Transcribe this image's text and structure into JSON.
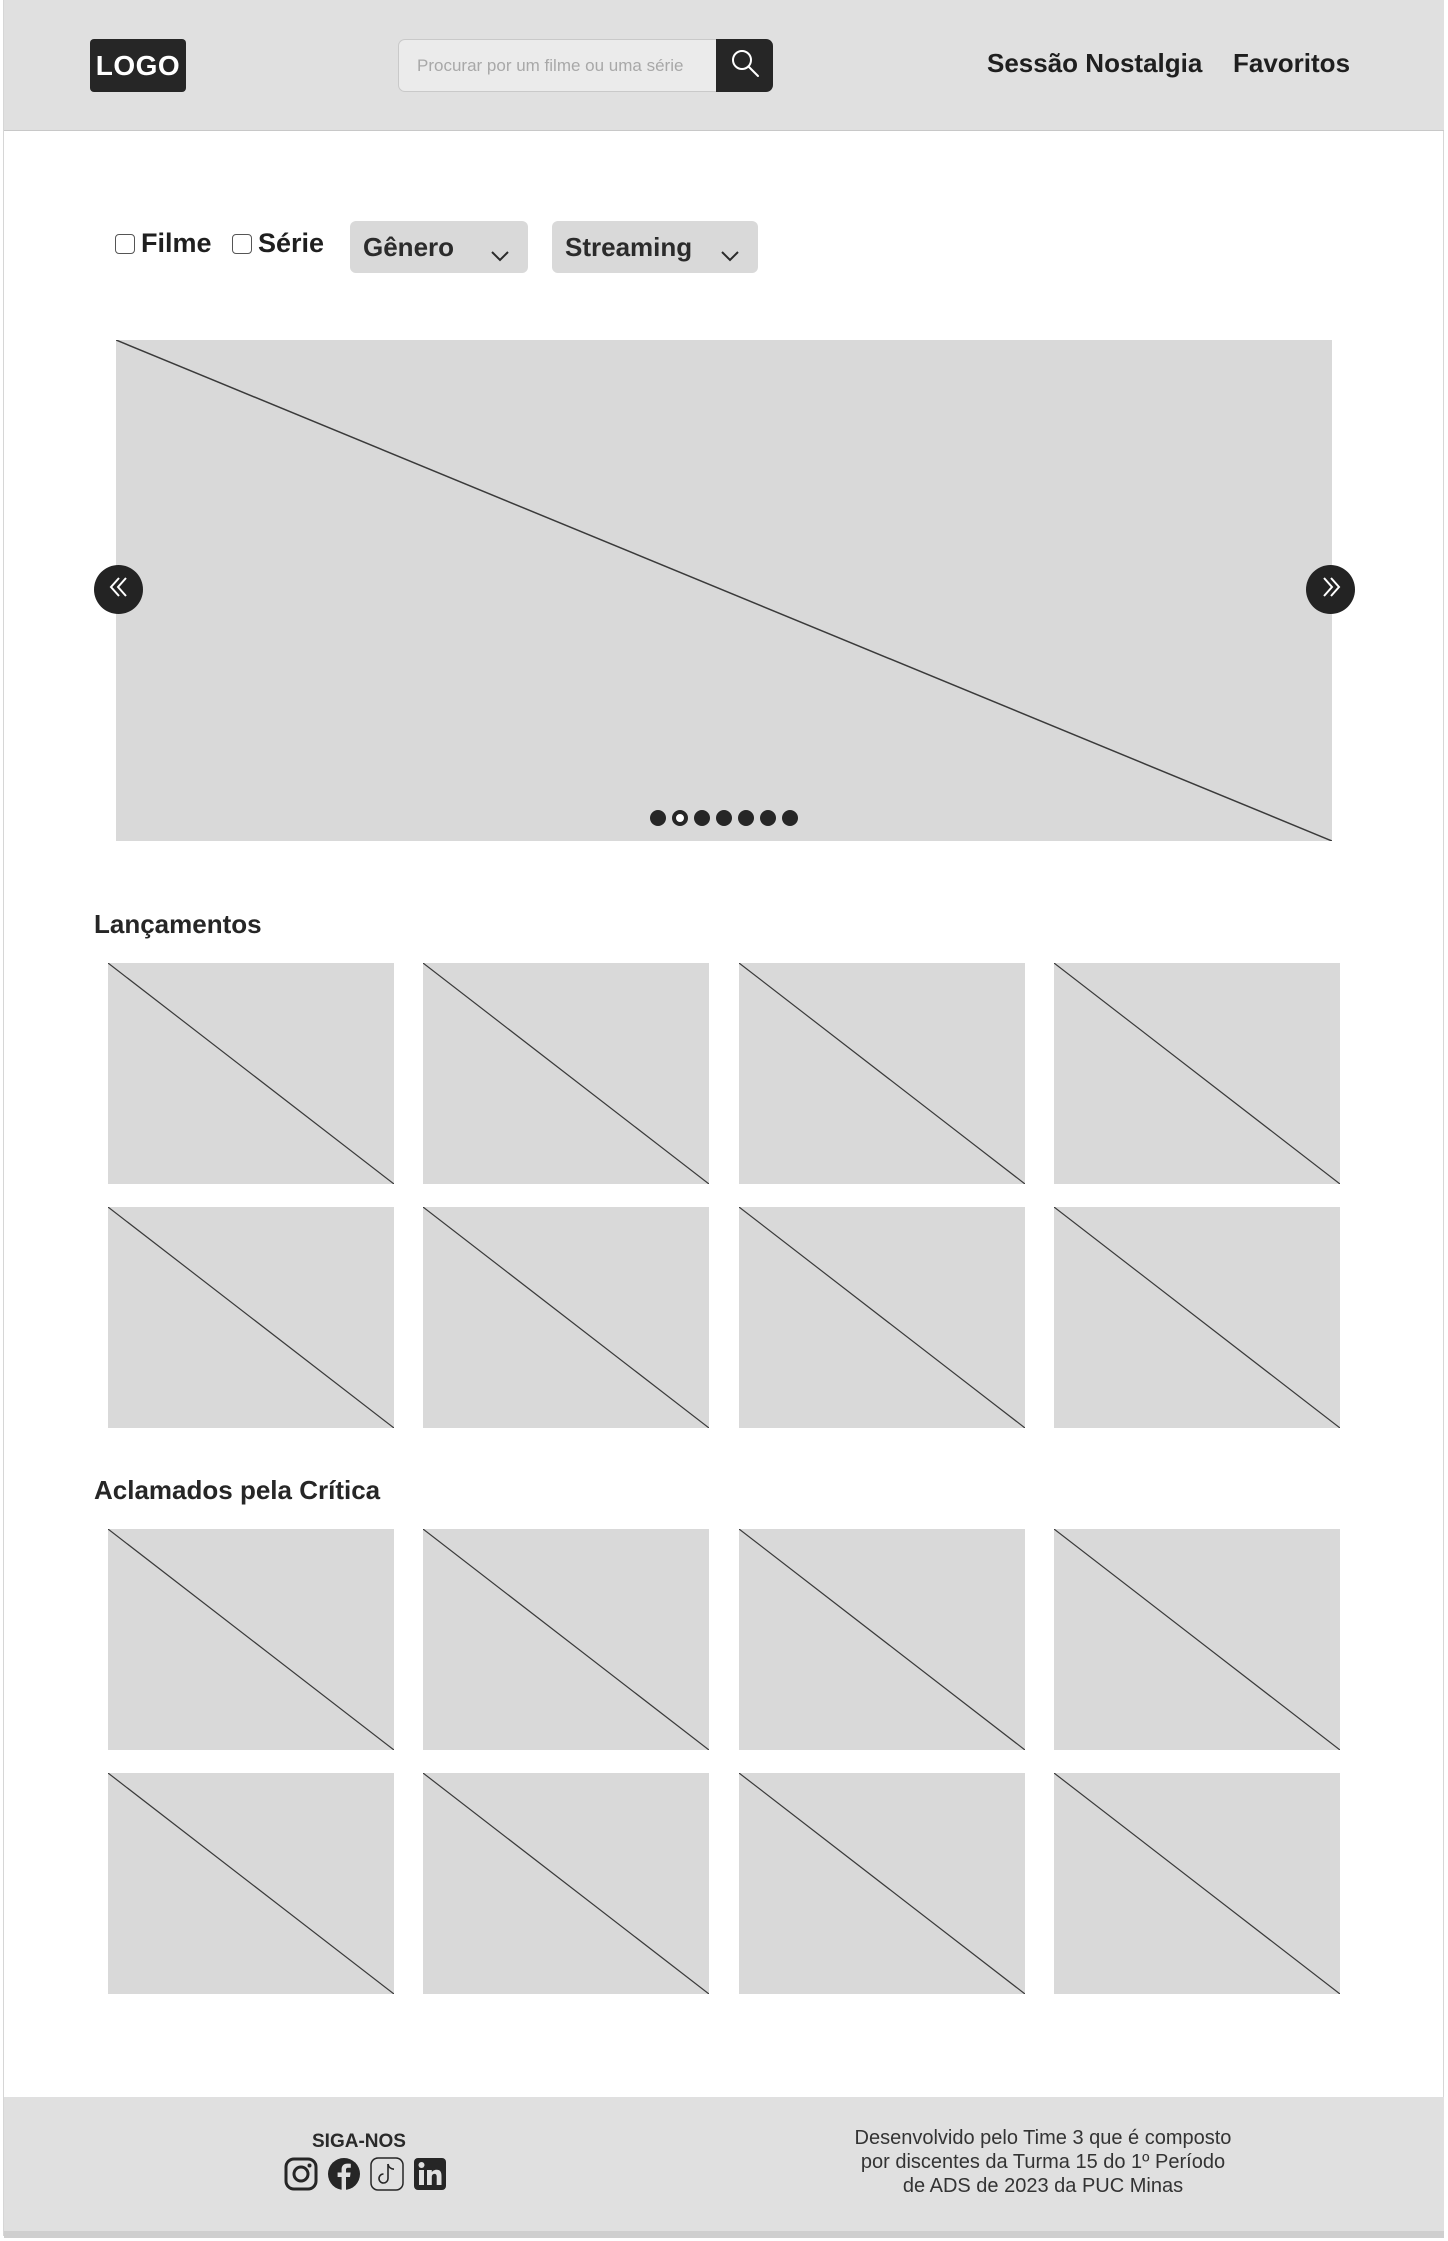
{
  "header": {
    "logo": "LOGO",
    "search": {
      "placeholder": "Procurar por um filme ou uma série",
      "value": ""
    },
    "nav": [
      "Sessão Nostalgia",
      "Favoritos"
    ]
  },
  "filters": {
    "checkboxes": [
      {
        "label": "Filme",
        "checked": false
      },
      {
        "label": "Série",
        "checked": false
      }
    ],
    "dropdowns": [
      "Gênero",
      "Streaming"
    ]
  },
  "carousel": {
    "slide_count": 7,
    "active_index": 1,
    "prev_icon": "double-chevron-left-icon",
    "next_icon": "double-chevron-right-icon"
  },
  "sections": [
    {
      "title": "Lançamentos",
      "items": 8
    },
    {
      "title": "Aclamados pela Crítica",
      "items": 8
    }
  ],
  "footer": {
    "follow_title": "SIGA-NOS",
    "socials": [
      "instagram-icon",
      "facebook-icon",
      "tiktok-icon",
      "linkedin-icon"
    ],
    "credits": [
      "Desenvolvido pelo Time 3 que é composto",
      "por discentes da Turma 15 do 1º Período",
      "de ADS de 2023 da PUC Minas"
    ]
  },
  "colors": {
    "header_bg": "#e0e0e0",
    "placeholder_bg": "#d9d9d9",
    "dark": "#262626"
  }
}
